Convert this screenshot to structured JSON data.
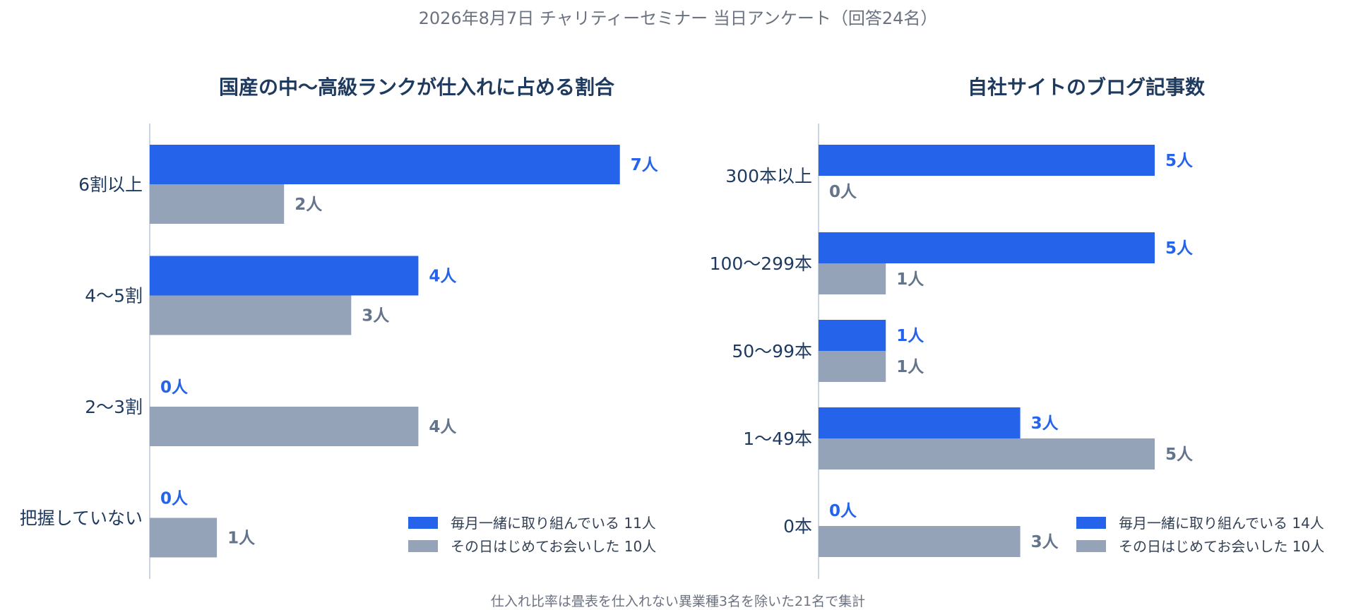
{
  "page": {
    "title": "2026年8月7日 チャリティーセミナー 当日アンケート（回答24名）",
    "footnote": "仕入れ比率は畳表を仕入れない異業種3名を除いた21名で集計"
  },
  "colors": {
    "series_primary": "#2563eb",
    "series_secondary": "#94a3b8",
    "label_primary": "#2563eb",
    "label_secondary": "#64748b"
  },
  "chart_data": [
    {
      "type": "bar",
      "orientation": "horizontal",
      "title": "国産の中〜高級ランクが仕入れに占める割合",
      "categories": [
        "6割以上",
        "4〜5割",
        "2〜3割",
        "把握していない"
      ],
      "value_suffix": "人",
      "xlim": [
        0,
        7
      ],
      "legend_position": "bottom-right",
      "series": [
        {
          "name": "毎月一緒に取り組んでいる 11人",
          "values": [
            7,
            4,
            0,
            0
          ]
        },
        {
          "name": "その日はじめてお会いした 10人",
          "values": [
            2,
            3,
            4,
            1
          ]
        }
      ]
    },
    {
      "type": "bar",
      "orientation": "horizontal",
      "title": "自社サイトのブログ記事数",
      "categories": [
        "300本以上",
        "100〜299本",
        "50〜99本",
        "1〜49本",
        "0本"
      ],
      "value_suffix": "人",
      "xlim": [
        0,
        5
      ],
      "legend_position": "bottom-right",
      "series": [
        {
          "name": "毎月一緒に取り組んでいる 14人",
          "values": [
            5,
            5,
            1,
            3,
            0
          ]
        },
        {
          "name": "その日はじめてお会いした 10人",
          "values": [
            0,
            1,
            1,
            5,
            3
          ]
        }
      ]
    }
  ]
}
